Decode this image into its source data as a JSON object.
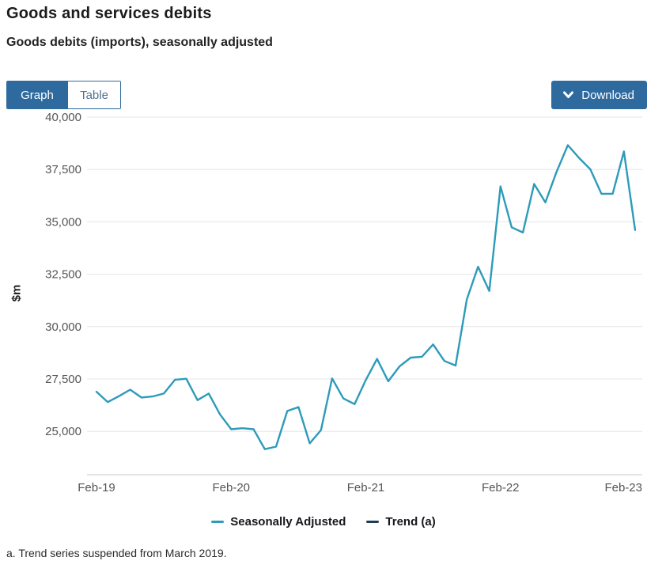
{
  "header": {
    "title": "Goods and services debits",
    "subtitle": "Goods debits (imports), seasonally adjusted"
  },
  "toolbar": {
    "tabs": [
      {
        "label": "Graph",
        "active": true
      },
      {
        "label": "Table",
        "active": false
      }
    ],
    "download_label": "Download"
  },
  "colors": {
    "accent_blue": "#2e6a9e",
    "seasonally_adjusted_line": "#2d9bb9",
    "trend_line": "#1d3c56",
    "gridline": "#e6e6e6",
    "axis_line": "#c8c8c8",
    "tick_text": "#555555"
  },
  "chart_data": {
    "type": "line",
    "title": "Goods debits (imports), seasonally adjusted",
    "xlabel": "",
    "ylabel": "$m",
    "grid": true,
    "legend_position": "bottom",
    "ylim": [
      22930,
      40000
    ],
    "y_ticks": [
      25000,
      27500,
      30000,
      32500,
      35000,
      37500,
      40000
    ],
    "x_tick_labels": [
      "Feb-19",
      "Feb-20",
      "Feb-21",
      "Feb-22",
      "Feb-23"
    ],
    "x": [
      "Feb-19",
      "Mar-19",
      "Apr-19",
      "May-19",
      "Jun-19",
      "Jul-19",
      "Aug-19",
      "Sep-19",
      "Oct-19",
      "Nov-19",
      "Dec-19",
      "Jan-20",
      "Feb-20",
      "Mar-20",
      "Apr-20",
      "May-20",
      "Jun-20",
      "Jul-20",
      "Aug-20",
      "Sep-20",
      "Oct-20",
      "Nov-20",
      "Dec-20",
      "Jan-21",
      "Feb-21",
      "Mar-21",
      "Apr-21",
      "May-21",
      "Jun-21",
      "Jul-21",
      "Aug-21",
      "Sep-21",
      "Oct-21",
      "Nov-21",
      "Dec-21",
      "Jan-22",
      "Feb-22",
      "Mar-22",
      "Apr-22",
      "May-22",
      "Jun-22",
      "Jul-22",
      "Aug-22",
      "Sep-22",
      "Oct-22",
      "Nov-22",
      "Dec-22",
      "Jan-23",
      "Feb-23"
    ],
    "series": [
      {
        "name": "Seasonally Adjusted",
        "color": "#2d9bb9",
        "values": [
          26890,
          26395,
          26680,
          26990,
          26615,
          26665,
          26805,
          27465,
          27510,
          26490,
          26805,
          25810,
          25100,
          25150,
          25100,
          24150,
          24270,
          25970,
          26160,
          24430,
          25060,
          27525,
          26570,
          26300,
          27450,
          28460,
          27390,
          28100,
          28520,
          28560,
          29150,
          28360,
          28140,
          31300,
          32860,
          31700,
          36690,
          34740,
          34490,
          36810,
          35930,
          37390,
          38660,
          38050,
          37510,
          36340,
          36340,
          38360,
          34610
        ]
      },
      {
        "name": "Trend (a)",
        "color": "#1d3c56",
        "values": []
      }
    ]
  },
  "footnote": {
    "text": "a. Trend series suspended from March 2019."
  }
}
